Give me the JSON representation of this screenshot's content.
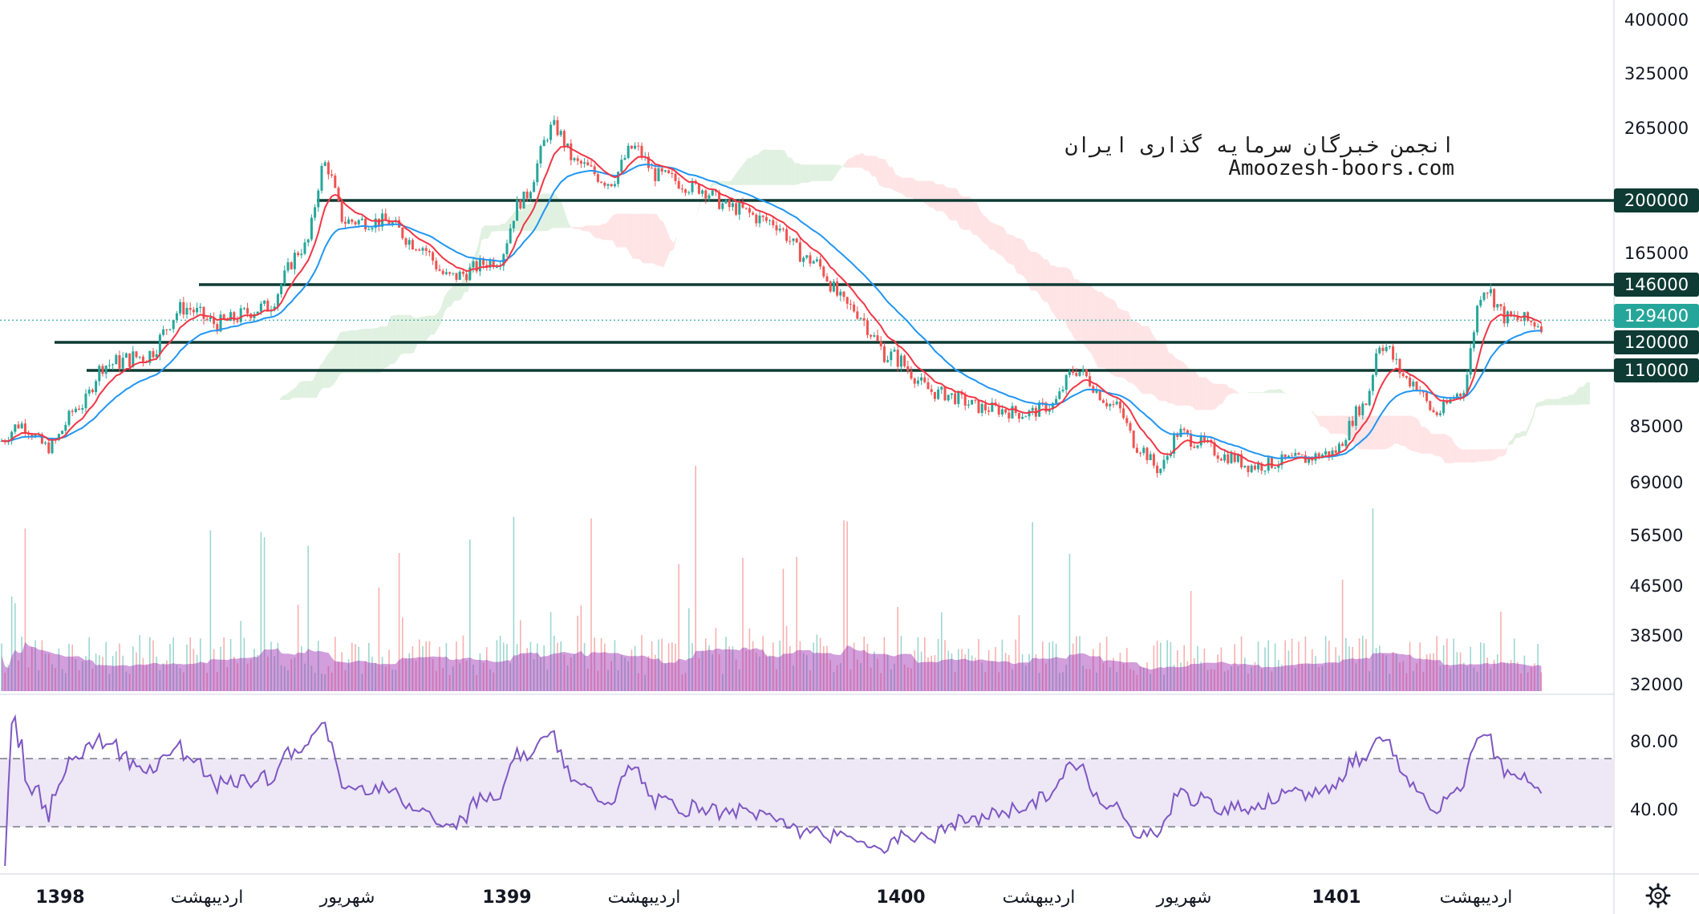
{
  "watermark": {
    "line1": "انجمن خبرگان سرمایه گذاری ایران",
    "line2": "Amoozesh-boors.com"
  },
  "colors": {
    "up": "#26a69a",
    "down": "#ef5350",
    "ema_fast": "#f23645",
    "ema_slow": "#2196f3",
    "hline": "#0e3b34",
    "badge": "#0e3b34",
    "last_price_badge": "#26a69a",
    "volume_ma": "#9c27b0",
    "rsi": "#7e57c2",
    "rsi_band": "#ede7f6"
  },
  "axis": {
    "price_ticks": [
      "400000",
      "325000",
      "265000",
      "200000",
      "165000",
      "146000",
      "129400",
      "120000",
      "110000",
      "85000",
      "69000",
      "56500",
      "46500",
      "38500",
      "32000"
    ],
    "rsi_ticks": [
      "80.00",
      "40.00"
    ],
    "time_labels": [
      {
        "text": "1398",
        "bold": true
      },
      {
        "text": "اردیبهشت",
        "bold": false
      },
      {
        "text": "شهریور",
        "bold": false
      },
      {
        "text": "1399",
        "bold": true
      },
      {
        "text": "اردیبهشت",
        "bold": false
      },
      {
        "text": "1400",
        "bold": true
      },
      {
        "text": "اردیبهشت",
        "bold": false
      },
      {
        "text": "شهریور",
        "bold": false
      },
      {
        "text": "1401",
        "bold": true
      },
      {
        "text": "اردیبهشت",
        "bold": false
      }
    ],
    "settings_icon": "gear-icon"
  },
  "chart_data": {
    "type": "candlestick",
    "scale": "log",
    "price_range": [
      60000,
      420000
    ],
    "last_price": 129400,
    "horizontal_levels": [
      200000,
      146000,
      120000,
      110000
    ],
    "key_points": {
      "dates": [
        "1398",
        "اردیبهشت",
        "شهریور",
        "1399",
        "اردیبهشت",
        "1400",
        "اردیبهشت",
        "شهریور",
        "1401",
        "اردیبهشت"
      ],
      "approx_close": [
        82000,
        110000,
        215000,
        185000,
        210000,
        110000,
        100000,
        80000,
        105000,
        129400
      ]
    },
    "rsi": {
      "upper_band": 70,
      "lower_band": 30,
      "range": [
        20,
        100
      ]
    }
  }
}
